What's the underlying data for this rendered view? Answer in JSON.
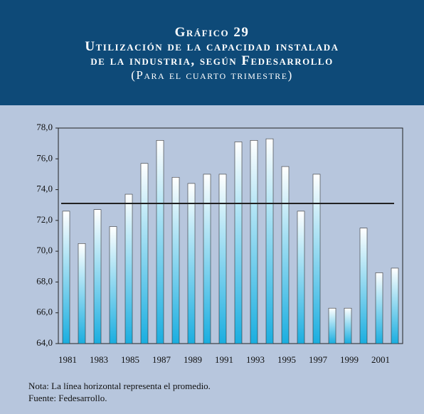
{
  "header": {
    "title_lines": [
      "Gráfico 29",
      "Utilización de la capacidad instalada",
      "de la industria, según Fedesarrollo",
      "(Para el cuarto trimestre)"
    ]
  },
  "chart_data": {
    "type": "bar",
    "categories": [
      "1981",
      null,
      "1983",
      null,
      "1985",
      null,
      "1987",
      null,
      "1989",
      null,
      "1991",
      null,
      "1993",
      null,
      "1995",
      null,
      "1997",
      null,
      "1999",
      null,
      "2001",
      null
    ],
    "values": [
      72.6,
      70.5,
      72.7,
      71.6,
      73.7,
      75.7,
      77.2,
      74.8,
      74.4,
      75.0,
      75.0,
      77.1,
      77.2,
      77.3,
      75.5,
      72.6,
      75.0,
      66.3,
      66.3,
      71.5,
      68.6,
      68.9
    ],
    "average": 73.1,
    "ylim": [
      64,
      78
    ],
    "yticks": [
      {
        "value": 64,
        "label": "64,0"
      },
      {
        "value": 66,
        "label": "66,0"
      },
      {
        "value": 68,
        "label": "68,0"
      },
      {
        "value": 70,
        "label": "70,0"
      },
      {
        "value": 72,
        "label": "72,0"
      },
      {
        "value": 74,
        "label": "74,0"
      },
      {
        "value": 76,
        "label": "76,0"
      },
      {
        "value": 78,
        "label": "78,0"
      }
    ],
    "color_top": "#ffffff",
    "color_bottom": "#1aaee0",
    "line_color": "#222222"
  },
  "notes": [
    "Nota: La línea horizontal representa el promedio.",
    "Fuente: Fedesarrollo."
  ]
}
